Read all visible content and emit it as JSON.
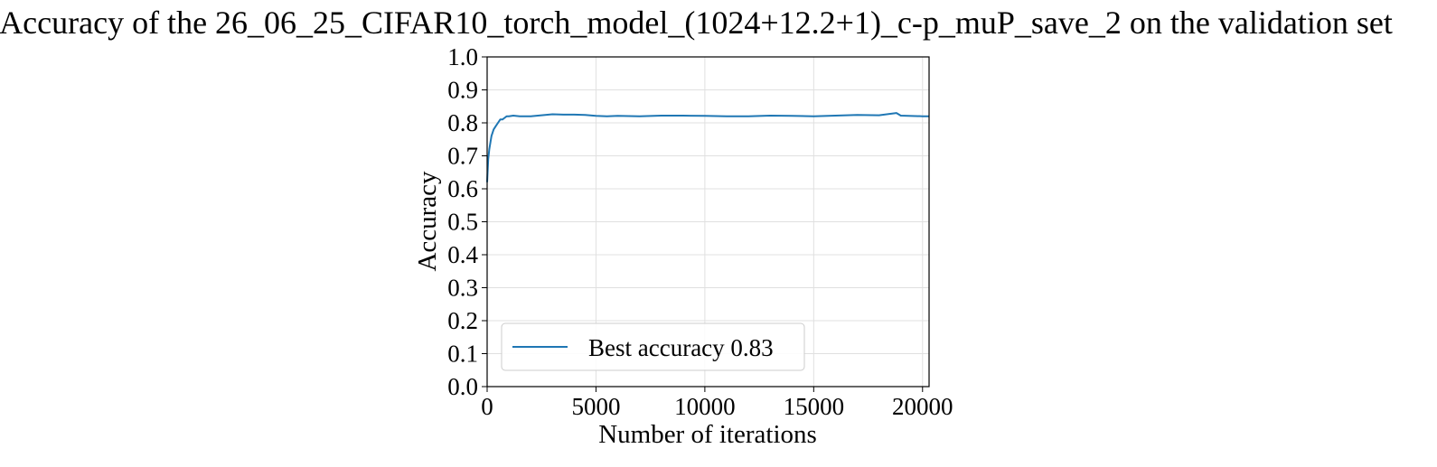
{
  "chart_data": {
    "type": "line",
    "title": "Accuracy of the 26_06_25_CIFAR10_torch_model_(1024+12.2+1)_c-p_muP_save_2 on the validation set",
    "xlabel": "Number of iterations",
    "ylabel": "Accuracy",
    "xlim": [
      0,
      20300
    ],
    "ylim": [
      0.0,
      1.0
    ],
    "grid": true,
    "legend_position": "lower-left",
    "x_ticks": [
      "0",
      "5000",
      "10000",
      "15000",
      "20000"
    ],
    "x_tick_values": [
      0,
      5000,
      10000,
      15000,
      20000
    ],
    "y_ticks": [
      "0.0",
      "0.1",
      "0.2",
      "0.3",
      "0.4",
      "0.5",
      "0.6",
      "0.7",
      "0.8",
      "0.9",
      "1.0"
    ],
    "y_tick_values": [
      0.0,
      0.1,
      0.2,
      0.3,
      0.4,
      0.5,
      0.6,
      0.7,
      0.8,
      0.9,
      1.0
    ],
    "series": [
      {
        "name": "Best accuracy 0.83",
        "color": "#1f77b4",
        "x": [
          0,
          50,
          100,
          150,
          200,
          300,
          400,
          500,
          600,
          700,
          800,
          900,
          1000,
          1200,
          1500,
          2000,
          2500,
          3000,
          3500,
          4000,
          4500,
          5000,
          5500,
          6000,
          7000,
          8000,
          9000,
          10000,
          11000,
          12000,
          13000,
          14000,
          15000,
          16000,
          17000,
          18000,
          18800,
          19000,
          20000,
          20300
        ],
        "y": [
          0.62,
          0.69,
          0.72,
          0.74,
          0.76,
          0.78,
          0.79,
          0.8,
          0.81,
          0.81,
          0.815,
          0.82,
          0.82,
          0.822,
          0.82,
          0.82,
          0.823,
          0.826,
          0.825,
          0.825,
          0.824,
          0.821,
          0.82,
          0.821,
          0.82,
          0.822,
          0.822,
          0.821,
          0.82,
          0.82,
          0.822,
          0.821,
          0.82,
          0.822,
          0.824,
          0.823,
          0.83,
          0.822,
          0.82,
          0.82
        ]
      }
    ]
  }
}
